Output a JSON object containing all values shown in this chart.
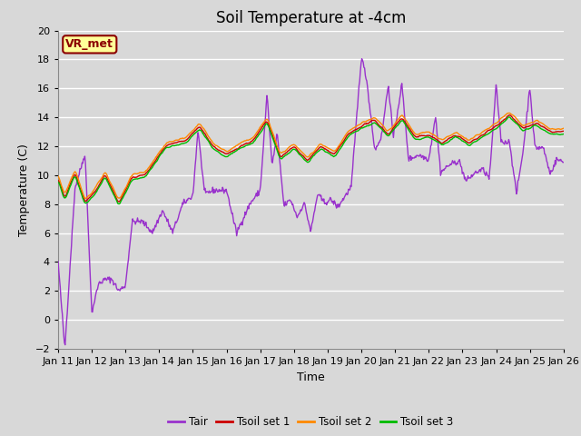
{
  "title": "Soil Temperature at -4cm",
  "xlabel": "Time",
  "ylabel": "Temperature (C)",
  "ylim": [
    -2,
    20
  ],
  "yticks": [
    -2,
    0,
    2,
    4,
    6,
    8,
    10,
    12,
    14,
    16,
    18,
    20
  ],
  "background_color": "#d8d8d8",
  "plot_bg_color": "#d8d8d8",
  "grid_color": "#ffffff",
  "annotation_text": "VR_met",
  "annotation_bg": "#ffff99",
  "annotation_border": "#8b0000",
  "line_colors": {
    "Tair": "#9932CC",
    "Tsoil1": "#cc0000",
    "Tsoil2": "#ff8800",
    "Tsoil3": "#00bb00"
  },
  "legend_labels": [
    "Tair",
    "Tsoil set 1",
    "Tsoil set 2",
    "Tsoil set 3"
  ],
  "xtick_labels": [
    "Jan 11",
    "Jan 12",
    "Jan 13",
    "Jan 14",
    "Jan 15",
    "Jan 16",
    "Jan 17",
    "Jan 18",
    "Jan 19",
    "Jan 20",
    "Jan 21",
    "Jan 22",
    "Jan 23",
    "Jan 24",
    "Jan 25",
    "Jan 26"
  ],
  "title_fontsize": 12,
  "axis_fontsize": 9,
  "tick_fontsize": 8
}
